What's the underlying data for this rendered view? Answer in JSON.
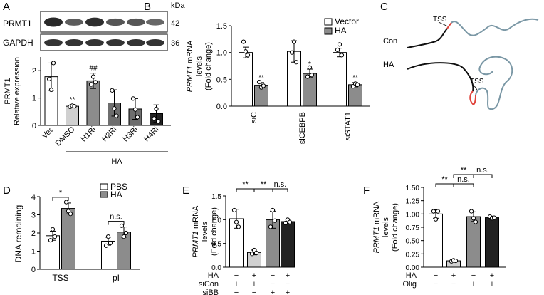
{
  "colors": {
    "white": "#ffffff",
    "light": "#d0d0d0",
    "mid": "#8c8c8c",
    "dark": "#6e6e6e",
    "black": "#222222",
    "red": "#e0443c",
    "blue": "#7a97a5",
    "blot": "#1e1e1e"
  },
  "panels": {
    "A": {
      "label": "A",
      "blot_rows": [
        "PRMT1",
        "GAPDH"
      ],
      "kda_label": "kDa",
      "kda_values": [
        "42",
        "36"
      ],
      "group_label": "HA",
      "chart_data": {
        "type": "bar",
        "ylabel": [
          "PRMT1",
          "Relative expression"
        ],
        "categories": [
          "Vec",
          "DMSO",
          "H1Ri",
          "H2Ri",
          "H3Ri",
          "H4Ri"
        ],
        "values": [
          1.78,
          0.7,
          1.63,
          0.82,
          0.6,
          0.43
        ],
        "errors": [
          0.5,
          0.05,
          0.28,
          0.48,
          0.38,
          0.32
        ],
        "points": [
          [
            1.7,
            1.3,
            2.28
          ],
          [
            0.68,
            0.72,
            0.7
          ],
          [
            1.5,
            1.78,
            1.58
          ],
          [
            1.28,
            0.62,
            0.35
          ],
          [
            0.98,
            0.58,
            0.3
          ],
          [
            0.25,
            0.6,
            0.15
          ]
        ],
        "fills": [
          "white",
          "light",
          "mid",
          "dark",
          "dark",
          "black"
        ],
        "sig": [
          "",
          "**",
          "##",
          "",
          "",
          ""
        ],
        "ylim": [
          0,
          2.5
        ],
        "yticks": [
          0,
          1,
          2
        ]
      }
    },
    "B": {
      "label": "B",
      "chart_data": {
        "type": "bar",
        "ylabel_italic": "PRMT1",
        "ylabel": [
          " mRNA",
          "levels",
          "(Fold change)"
        ],
        "categories": [
          "siC",
          "siCEBPB",
          "siSTAT1"
        ],
        "series": [
          {
            "name": "Vector",
            "values": [
              1.0,
              1.02,
              1.0
            ],
            "errors": [
              0.1,
              0.2,
              0.08
            ],
            "points": [
              [
                1.2,
                1.02,
                0.95
              ],
              [
                1.0,
                1.2,
                0.82
              ],
              [
                1.05,
                1.15,
                0.95
              ]
            ],
            "fill": "white"
          },
          {
            "name": "HA",
            "values": [
              0.39,
              0.61,
              0.4
            ],
            "errors": [
              0.05,
              0.08,
              0.04
            ],
            "points": [
              [
                0.45,
                0.35,
                0.38
              ],
              [
                0.55,
                0.72,
                0.58
              ],
              [
                0.37,
                0.42,
                0.4
              ]
            ],
            "fill": "mid"
          }
        ],
        "sig": [
          "**",
          "*",
          "**"
        ],
        "ylim": [
          0,
          1.5
        ],
        "yticks": [
          "0.0",
          "0.5",
          "1.0",
          "1.5"
        ],
        "legend": "top-right"
      }
    },
    "C": {
      "label": "C",
      "con_label": "Con",
      "ha_label": "HA",
      "tss_label": "TSS"
    },
    "D": {
      "label": "D",
      "chart_data": {
        "type": "bar",
        "ylabel": "DNA remaining",
        "categories": [
          "TSS",
          "pI"
        ],
        "series": [
          {
            "name": "PBS",
            "values": [
              1.85,
              1.55
            ],
            "errors": [
              0.25,
              0.22
            ],
            "points": [
              [
                1.6,
                2.2,
                1.8
              ],
              [
                1.3,
                1.8,
                1.45
              ]
            ],
            "fill": "white"
          },
          {
            "name": "HA",
            "values": [
              3.35,
              2.05
            ],
            "errors": [
              0.3,
              0.28
            ],
            "points": [
              [
                3.7,
                3.2,
                3.05
              ],
              [
                2.4,
                1.8,
                2.0
              ]
            ],
            "fill": "mid"
          }
        ],
        "sig": [
          "*",
          "n.s."
        ],
        "ylim": [
          0,
          4
        ],
        "yticks": [
          0,
          1,
          2,
          3,
          4
        ],
        "legend": "top-right"
      }
    },
    "E": {
      "label": "E",
      "chart_data": {
        "type": "bar",
        "ylabel_italic": "PRMT1",
        "ylabel": [
          " mRNA",
          "levels",
          "(Fold change)"
        ],
        "values": [
          1.02,
          0.31,
          1.0,
          0.96
        ],
        "errors": [
          0.2,
          0.05,
          0.18,
          0.05
        ],
        "points": [
          [
            1.2,
            0.95,
            0.85
          ],
          [
            0.28,
            0.36,
            0.3
          ],
          [
            0.85,
            1.2,
            0.98
          ],
          [
            0.93,
            1.0,
            0.95
          ]
        ],
        "fills": [
          "white",
          "light",
          "mid",
          "black"
        ],
        "conditions": [
          {
            "label": "HA",
            "signs": [
              "−",
              "+",
              "−",
              "+"
            ]
          },
          {
            "label": "siCon",
            "signs": [
              "+",
              "+",
              "−",
              "−"
            ]
          },
          {
            "label": "siBB",
            "signs": [
              "−",
              "−",
              "+",
              "+"
            ]
          }
        ],
        "brackets": [
          "**",
          "**",
          "n.s."
        ],
        "ylim": [
          0,
          1.5
        ],
        "yticks": [
          "0.0",
          "0.5",
          "1.0",
          "1.5"
        ]
      }
    },
    "F": {
      "label": "F",
      "chart_data": {
        "type": "bar",
        "ylabel_italic": "PRMT1",
        "ylabel": [
          " mRNA",
          "levels",
          "(Fold change)"
        ],
        "values": [
          1.0,
          0.12,
          0.95,
          0.93
        ],
        "errors": [
          0.08,
          0.02,
          0.09,
          0.03
        ],
        "points": [
          [
            1.05,
            0.9,
            1.05
          ],
          [
            0.11,
            0.13,
            0.12
          ],
          [
            1.05,
            0.92,
            0.85
          ],
          [
            0.95,
            0.92,
            0.93
          ]
        ],
        "fills": [
          "white",
          "light",
          "mid",
          "black"
        ],
        "conditions": [
          {
            "label": "HA",
            "signs": [
              "−",
              "+",
              "−",
              "+"
            ]
          },
          {
            "label": "Olig",
            "signs": [
              "−",
              "−",
              "+",
              "+"
            ]
          }
        ],
        "brackets": [
          "**",
          "n.s.",
          "**",
          "n.s."
        ],
        "ylim": [
          0,
          1.5
        ],
        "yticks": [
          "0.00",
          "0.25",
          "0.50",
          "0.75",
          "1.00",
          "1.25",
          "1.50"
        ]
      }
    }
  }
}
